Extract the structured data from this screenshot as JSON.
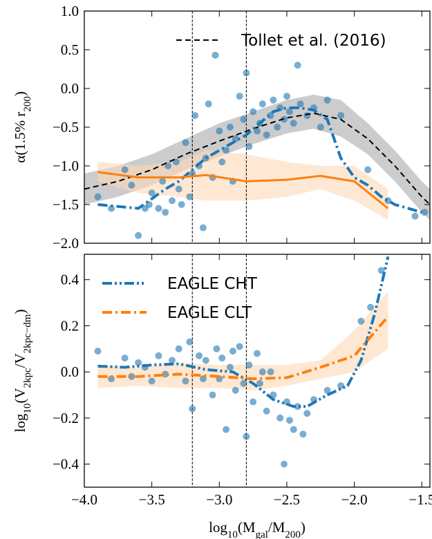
{
  "chart_data": [
    {
      "type": "line",
      "ylabel": [
        {
          "text": "α(1.5% r"
        },
        {
          "sub": "200"
        },
        {
          "text": ")"
        }
      ],
      "xlim": [
        -4.0,
        -1.44
      ],
      "ylim": [
        -2.0,
        1.0
      ],
      "xticks": [
        {
          "value": -4.0,
          "label": "−4.0"
        },
        {
          "value": -3.5,
          "label": "−3.5"
        },
        {
          "value": -3.0,
          "label": "−3.0"
        },
        {
          "value": -2.5,
          "label": "−2.5"
        },
        {
          "value": -2.0,
          "label": "−2.0"
        },
        {
          "value": -1.5,
          "label": "−1.5"
        }
      ],
      "show_xticklabels": false,
      "yticks": [
        {
          "value": -2.0,
          "label": "−2.0"
        },
        {
          "value": -1.5,
          "label": "−1.5"
        },
        {
          "value": -1.0,
          "label": "−1.0"
        },
        {
          "value": -0.5,
          "label": "−0.5"
        },
        {
          "value": 0,
          "label": "0.0"
        },
        0.5,
        {
          "value": 1.0,
          "label": "1.0"
        }
      ],
      "vlines": [
        -3.2,
        -2.8
      ],
      "legend": "upper right",
      "series": [
        {
          "kind": "band",
          "color": "#aaaaaa",
          "x": [
            -4,
            -3.75,
            -3.5,
            -3.25,
            -3,
            -2.75,
            -2.5,
            -2.3,
            -2.1,
            -1.9,
            -1.7,
            -1.5,
            -1.44
          ],
          "lower": [
            -1.5,
            -1.4,
            -1.25,
            -1.05,
            -0.88,
            -0.72,
            -0.58,
            -0.52,
            -0.62,
            -0.85,
            -1.2,
            -1.6,
            -1.7
          ],
          "upper": [
            -1.1,
            -1.0,
            -0.85,
            -0.65,
            -0.45,
            -0.3,
            -0.15,
            -0.08,
            -0.15,
            -0.45,
            -0.8,
            -1.2,
            -1.3
          ]
        },
        {
          "kind": "band",
          "color": "#fdd9b5",
          "x": [
            -3.9,
            -3.6,
            -3.3,
            -3.1,
            -2.8,
            -2.5,
            -2.25,
            -2.0,
            -1.75
          ],
          "lower": [
            -1.2,
            -1.35,
            -1.4,
            -1.45,
            -1.45,
            -1.4,
            -1.3,
            -1.45,
            -1.7
          ],
          "upper": [
            -0.95,
            -1.0,
            -0.95,
            -0.8,
            -0.85,
            -0.95,
            -1.0,
            -1.0,
            -1.3
          ]
        },
        {
          "kind": "scatter",
          "color": "#1f77b4",
          "x": [
            -3.9,
            -3.8,
            -3.65,
            -3.6,
            -3.55,
            -3.5,
            -3.45,
            -3.42,
            -3.4,
            -3.35,
            -3.3,
            -3.28,
            -3.25,
            -3.22,
            -3.2,
            -3.18,
            -3.15,
            -3.12,
            -3.1,
            -3.08,
            -3.05,
            -3.03,
            -3.0,
            -2.98,
            -2.95,
            -2.92,
            -2.9,
            -2.88,
            -2.85,
            -2.82,
            -2.8,
            -2.78,
            -2.75,
            -2.72,
            -2.7,
            -2.68,
            -2.65,
            -2.62,
            -2.6,
            -2.57,
            -2.55,
            -2.52,
            -2.5,
            -2.48,
            -2.45,
            -2.42,
            -2.4,
            -2.35,
            -2.3,
            -2.25,
            -2.2,
            -2.1,
            -1.9,
            -1.75,
            -1.55,
            -1.48,
            -3.7,
            -3.52,
            -3.38,
            -3.32
          ],
          "values": [
            -1.4,
            -1.55,
            -1.25,
            -1.9,
            -1.55,
            -1.35,
            -1.55,
            -1.2,
            -1.6,
            -1.45,
            -1.3,
            -1.5,
            -0.7,
            -1.4,
            -1.1,
            -0.35,
            -1.0,
            -1.8,
            -0.9,
            -0.2,
            -1.15,
            0.43,
            -0.55,
            -0.95,
            -0.8,
            -0.5,
            -1.2,
            -0.65,
            -0.1,
            -0.4,
            0.2,
            -0.75,
            -0.3,
            -0.55,
            -0.45,
            -0.2,
            -0.6,
            -0.35,
            -0.15,
            -0.5,
            -0.25,
            -0.4,
            -0.1,
            -0.3,
            -0.45,
            0.3,
            -0.2,
            -0.35,
            -0.25,
            -0.5,
            -0.15,
            -0.35,
            -1.05,
            -1.45,
            -1.65,
            -1.6,
            -1.05,
            -1.5,
            -1.0,
            -0.95
          ]
        },
        {
          "kind": "line",
          "name": "Tollet et al. (2016)",
          "color": "#000000",
          "dash": "dashed",
          "width": 2,
          "x": [
            -4,
            -3.75,
            -3.5,
            -3.25,
            -3,
            -2.75,
            -2.5,
            -2.3,
            -2.1,
            -1.9,
            -1.7,
            -1.5,
            -1.44
          ],
          "values": [
            -1.3,
            -1.2,
            -1.05,
            -0.85,
            -0.68,
            -0.52,
            -0.38,
            -0.32,
            -0.4,
            -0.65,
            -1.0,
            -1.4,
            -1.5
          ]
        },
        {
          "kind": "line",
          "color": "#1f77b4",
          "dash": "dashdot",
          "width": 4,
          "x": [
            -3.9,
            -3.6,
            -3.4,
            -3.3,
            -3.2,
            -3.1,
            -3.0,
            -2.9,
            -2.8,
            -2.7,
            -2.6,
            -2.5,
            -2.4,
            -2.3,
            -2.2,
            -2.1,
            -2.0,
            -1.9,
            -1.8,
            -1.7,
            -1.6,
            -1.5
          ],
          "values": [
            -1.5,
            -1.55,
            -1.3,
            -1.2,
            -1.05,
            -0.9,
            -0.8,
            -0.7,
            -0.6,
            -0.45,
            -0.3,
            -0.25,
            -0.25,
            -0.28,
            -0.4,
            -0.9,
            -1.15,
            -1.25,
            -1.4,
            -1.5,
            -1.55,
            -1.6
          ]
        },
        {
          "kind": "line",
          "color": "#ff7f0e",
          "dash": "solid",
          "width": 3,
          "x": [
            -3.9,
            -3.6,
            -3.3,
            -3.1,
            -2.8,
            -2.5,
            -2.25,
            -2.0,
            -1.75
          ],
          "values": [
            -1.08,
            -1.15,
            -1.15,
            -1.12,
            -1.2,
            -1.18,
            -1.13,
            -1.2,
            -1.55
          ]
        }
      ]
    },
    {
      "type": "line",
      "ylabel": [
        {
          "text": "log"
        },
        {
          "sub": "10"
        },
        {
          "text": "(V"
        },
        {
          "sub": "2kpc"
        },
        {
          "text": "/V"
        },
        {
          "sub": "2kpc−dm"
        },
        {
          "text": ")"
        }
      ],
      "xlabel": [
        {
          "text": "log"
        },
        {
          "sub": "10"
        },
        {
          "text": "(M"
        },
        {
          "sub": "gal"
        },
        {
          "text": "/M"
        },
        {
          "sub": "200"
        },
        {
          "text": ")"
        }
      ],
      "xlim": [
        -4.0,
        -1.44
      ],
      "ylim": [
        -0.5,
        0.51
      ],
      "xticks": [
        {
          "value": -4.0,
          "label": "−4.0"
        },
        {
          "value": -3.5,
          "label": "−3.5"
        },
        {
          "value": -3.0,
          "label": "−3.0"
        },
        {
          "value": -2.5,
          "label": "−2.5"
        },
        {
          "value": -2.0,
          "label": "−2.0"
        },
        {
          "value": -1.5,
          "label": "−1.5"
        }
      ],
      "show_xticklabels": true,
      "yticks": [
        {
          "value": -0.4,
          "label": "−0.4"
        },
        {
          "value": -0.2,
          "label": "−0.2"
        },
        {
          "value": 0,
          "label": "0.0"
        },
        0.2,
        0.4
      ],
      "vlines": [
        -3.2,
        -2.8
      ],
      "legend": "upper left",
      "series": [
        {
          "kind": "band",
          "color": "#fdd9b5",
          "x": [
            -3.9,
            -3.6,
            -3.3,
            -3.0,
            -2.75,
            -2.5,
            -2.25,
            -2.0,
            -1.75
          ],
          "lower": [
            -0.07,
            -0.06,
            -0.07,
            -0.07,
            -0.08,
            -0.06,
            -0.03,
            0.0,
            0.1
          ],
          "upper": [
            0.03,
            0.02,
            0.04,
            0.03,
            0.03,
            0.03,
            0.05,
            0.18,
            0.35
          ]
        },
        {
          "kind": "scatter",
          "color": "#1f77b4",
          "x": [
            -3.9,
            -3.8,
            -3.7,
            -3.6,
            -3.5,
            -3.45,
            -3.4,
            -3.35,
            -3.3,
            -3.25,
            -3.22,
            -3.2,
            -3.15,
            -3.12,
            -3.1,
            -3.05,
            -3.02,
            -3.0,
            -2.98,
            -2.95,
            -2.92,
            -2.9,
            -2.88,
            -2.85,
            -2.82,
            -2.8,
            -2.78,
            -2.75,
            -2.72,
            -2.7,
            -2.68,
            -2.65,
            -2.6,
            -2.55,
            -2.5,
            -2.48,
            -2.45,
            -2.42,
            -2.38,
            -2.35,
            -2.3,
            -2.2,
            -2.1,
            -2.52,
            -1.95,
            -1.88,
            -1.8,
            -3.55,
            -3.65,
            -2.62
          ],
          "values": [
            0.09,
            -0.03,
            0.06,
            0.04,
            -0.04,
            0.07,
            -0.01,
            0.05,
            0.1,
            -0.04,
            0.13,
            -0.16,
            0.07,
            -0.03,
            0.05,
            -0.1,
            0.1,
            -0.03,
            0.06,
            -0.25,
            0.02,
            0.09,
            -0.08,
            0.11,
            -0.05,
            -0.28,
            0.03,
            -0.13,
            0.08,
            -0.05,
            0.0,
            -0.17,
            -0.1,
            -0.2,
            -0.13,
            -0.21,
            -0.25,
            -0.15,
            -0.27,
            -0.18,
            -0.12,
            -0.08,
            -0.06,
            -0.4,
            0.22,
            0.28,
            0.44,
            0.02,
            -0.02,
            0.0
          ]
        },
        {
          "kind": "line",
          "name": "EAGLE CHT",
          "color": "#1f77b4",
          "dash": "dashdotdot",
          "width": 4,
          "x": [
            -3.9,
            -3.7,
            -3.5,
            -3.3,
            -3.1,
            -2.9,
            -2.75,
            -2.6,
            -2.45,
            -2.35,
            -2.2,
            -2.05,
            -1.95,
            -1.85,
            -1.75
          ],
          "values": [
            0.025,
            0.02,
            0.03,
            0.035,
            0.01,
            0.0,
            -0.05,
            -0.12,
            -0.15,
            -0.15,
            -0.1,
            -0.06,
            0.05,
            0.25,
            0.5
          ]
        },
        {
          "kind": "line",
          "name": "EAGLE CLT",
          "color": "#ff7f0e",
          "dash": "dashdot",
          "width": 4,
          "x": [
            -3.9,
            -3.6,
            -3.3,
            -3.0,
            -2.75,
            -2.5,
            -2.25,
            -2.0,
            -1.75
          ],
          "values": [
            -0.02,
            -0.02,
            -0.01,
            -0.02,
            -0.03,
            -0.025,
            0.02,
            0.07,
            0.24
          ]
        }
      ]
    }
  ]
}
